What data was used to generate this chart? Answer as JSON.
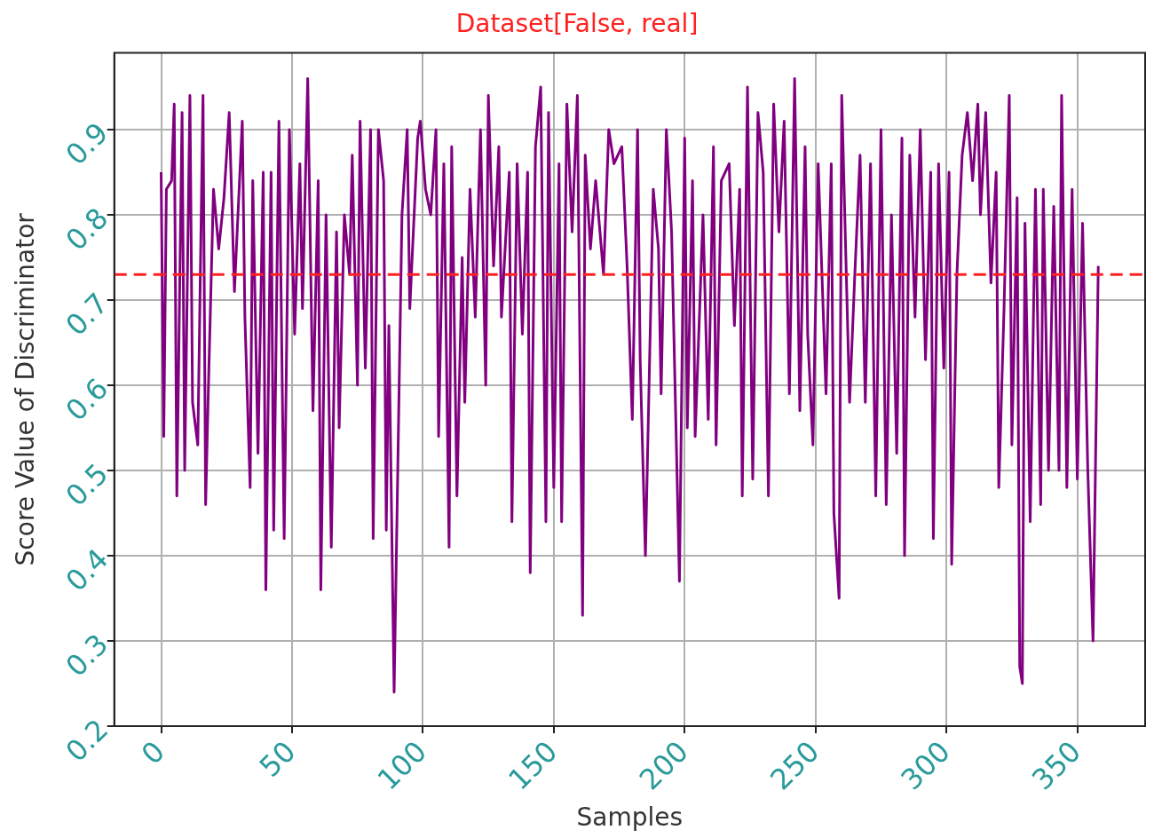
{
  "chart_data": {
    "type": "line",
    "title": "Dataset[False, real]",
    "xlabel": "Samples",
    "ylabel": "Score Value of Discriminator",
    "x": [
      0,
      1,
      2,
      4,
      5,
      6,
      8,
      9,
      11,
      12,
      14,
      16,
      17,
      18,
      20,
      22,
      24,
      26,
      28,
      31,
      32,
      34,
      35,
      37,
      39,
      40,
      42,
      43,
      45,
      47,
      49,
      51,
      53,
      54,
      56,
      58,
      60,
      61,
      63,
      65,
      67,
      68,
      70,
      72,
      73,
      75,
      76,
      78,
      80,
      81,
      83,
      85,
      86,
      87,
      89,
      92,
      94,
      95,
      98,
      99,
      101,
      103,
      105,
      106,
      108,
      110,
      111,
      113,
      115,
      116,
      118,
      120,
      122,
      124,
      125,
      127,
      129,
      130,
      133,
      134,
      136,
      138,
      140,
      141,
      143,
      145,
      147,
      148,
      150,
      152,
      153,
      155,
      157,
      159,
      161,
      162,
      164,
      166,
      169,
      171,
      173,
      176,
      178,
      180,
      182,
      183,
      185,
      188,
      190,
      191,
      193,
      195,
      198,
      200,
      201,
      203,
      204,
      207,
      209,
      211,
      212,
      214,
      217,
      219,
      221,
      222,
      224,
      226,
      228,
      230,
      232,
      234,
      236,
      238,
      240,
      242,
      244,
      246,
      247,
      249,
      251,
      254,
      256,
      257,
      259,
      260,
      263,
      265,
      267,
      269,
      271,
      273,
      275,
      277,
      279,
      281,
      283,
      284,
      286,
      288,
      290,
      292,
      294,
      295,
      297,
      299,
      301,
      302,
      304,
      306,
      308,
      310,
      312,
      313,
      315,
      317,
      319,
      320,
      322,
      324,
      325,
      327,
      328,
      329,
      330,
      332,
      334,
      336,
      337,
      339,
      341,
      343,
      344,
      346,
      348,
      350,
      352,
      354,
      356,
      358
    ],
    "series": [
      {
        "color": "#800080",
        "values": [
          0.85,
          0.54,
          0.83,
          0.84,
          0.93,
          0.47,
          0.92,
          0.5,
          0.94,
          0.58,
          0.53,
          0.94,
          0.46,
          0.59,
          0.83,
          0.76,
          0.82,
          0.92,
          0.71,
          0.91,
          0.68,
          0.48,
          0.84,
          0.52,
          0.85,
          0.36,
          0.85,
          0.43,
          0.91,
          0.42,
          0.9,
          0.66,
          0.86,
          0.69,
          0.96,
          0.57,
          0.84,
          0.36,
          0.8,
          0.41,
          0.78,
          0.55,
          0.8,
          0.73,
          0.87,
          0.6,
          0.91,
          0.62,
          0.9,
          0.42,
          0.9,
          0.84,
          0.43,
          0.67,
          0.24,
          0.8,
          0.9,
          0.69,
          0.89,
          0.91,
          0.83,
          0.8,
          0.9,
          0.54,
          0.86,
          0.41,
          0.88,
          0.47,
          0.75,
          0.58,
          0.83,
          0.68,
          0.9,
          0.6,
          0.94,
          0.74,
          0.88,
          0.68,
          0.85,
          0.44,
          0.86,
          0.66,
          0.85,
          0.38,
          0.88,
          0.95,
          0.44,
          0.92,
          0.48,
          0.86,
          0.44,
          0.93,
          0.78,
          0.94,
          0.33,
          0.87,
          0.76,
          0.84,
          0.73,
          0.9,
          0.86,
          0.88,
          0.74,
          0.56,
          0.9,
          0.63,
          0.4,
          0.83,
          0.76,
          0.59,
          0.9,
          0.78,
          0.37,
          0.89,
          0.55,
          0.84,
          0.54,
          0.8,
          0.56,
          0.88,
          0.53,
          0.84,
          0.86,
          0.67,
          0.83,
          0.47,
          0.95,
          0.49,
          0.92,
          0.85,
          0.47,
          0.93,
          0.78,
          0.91,
          0.59,
          0.96,
          0.57,
          0.88,
          0.66,
          0.53,
          0.86,
          0.59,
          0.86,
          0.45,
          0.35,
          0.94,
          0.58,
          0.73,
          0.87,
          0.58,
          0.86,
          0.47,
          0.9,
          0.46,
          0.8,
          0.52,
          0.89,
          0.4,
          0.87,
          0.68,
          0.9,
          0.63,
          0.85,
          0.42,
          0.86,
          0.62,
          0.85,
          0.39,
          0.73,
          0.87,
          0.92,
          0.84,
          0.93,
          0.8,
          0.92,
          0.72,
          0.85,
          0.48,
          0.69,
          0.94,
          0.53,
          0.82,
          0.27,
          0.25,
          0.79,
          0.44,
          0.83,
          0.46,
          0.83,
          0.5,
          0.81,
          0.5,
          0.94,
          0.48,
          0.83,
          0.49,
          0.79,
          0.5,
          0.3,
          0.74
        ]
      }
    ],
    "xlim": [
      -17.9,
      375.9
    ],
    "xticks": [
      0,
      50,
      100,
      150,
      200,
      250,
      300,
      350
    ],
    "ylim": [
      0.2,
      0.99
    ],
    "yticks": [
      0.2,
      0.3,
      0.4,
      0.5,
      0.6,
      0.7,
      0.8,
      0.9
    ],
    "ref_lines": [
      {
        "axis": "y",
        "value": 0.73,
        "color": "#ff2020",
        "line_style": "dashed"
      }
    ],
    "grid": true,
    "legend": false,
    "marker": "none",
    "line_style": "solid"
  }
}
